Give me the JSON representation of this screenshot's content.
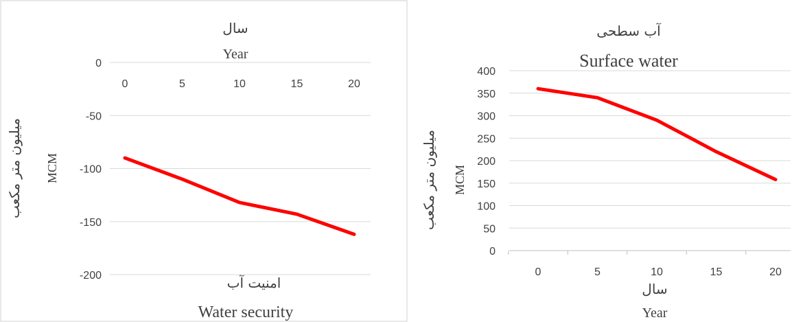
{
  "chart_data": [
    {
      "type": "line",
      "title_fa": "امنیت آب",
      "title_en": "Water security",
      "xlabel_fa": "سال",
      "xlabel_en": "Year",
      "ylabel_fa": "میلیون متر مکعب",
      "ylabel_en": "MCM",
      "x": [
        0,
        5,
        10,
        15,
        20
      ],
      "xticks": [
        "0",
        "5",
        "10",
        "15",
        "20"
      ],
      "yticks": [
        "0",
        "-50",
        "-100",
        "-150",
        "-200"
      ],
      "ylim": [
        -200,
        0
      ],
      "x_axis_position": "top",
      "grid": true,
      "series": [
        {
          "values": [
            -90,
            -110,
            -132,
            -143,
            -162
          ],
          "color": "#ff0000"
        }
      ]
    },
    {
      "type": "line",
      "title_fa": "آب سطحی",
      "title_en": "Surface water",
      "xlabel_fa": "سال",
      "xlabel_en": "Year",
      "ylabel_fa": "میلیون متر مکعب",
      "ylabel_en": "MCM",
      "x": [
        0,
        5,
        10,
        15,
        20
      ],
      "xticks": [
        "0",
        "5",
        "10",
        "15",
        "20"
      ],
      "yticks": [
        "400",
        "350",
        "300",
        "250",
        "200",
        "150",
        "100",
        "50",
        "0"
      ],
      "ylim": [
        0,
        400
      ],
      "x_axis_position": "bottom",
      "grid": true,
      "series": [
        {
          "values": [
            360,
            340,
            290,
            220,
            158
          ],
          "color": "#ff0000"
        }
      ]
    }
  ]
}
